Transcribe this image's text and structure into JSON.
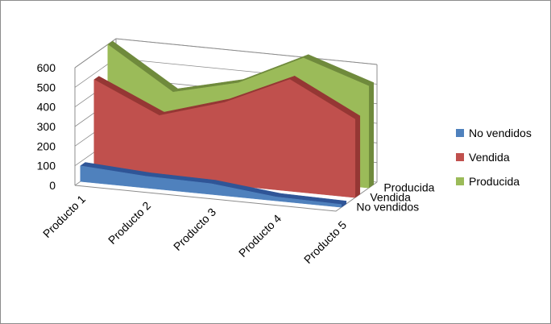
{
  "chart_data": {
    "type": "area",
    "title": "",
    "xlabel": "",
    "ylabel": "",
    "ylim": [
      0,
      600
    ],
    "yticks": [
      0,
      100,
      200,
      300,
      400,
      500,
      600
    ],
    "categories": [
      "Producto 1",
      "Producto 2",
      "Producto 3",
      "Producto 4",
      "Producto 5"
    ],
    "depth_labels": [
      "Producida",
      "Vendida",
      "No vendidos"
    ],
    "series": [
      {
        "name": "No vendidos",
        "values": [
          80,
          60,
          55,
          20,
          15
        ],
        "color": "#4f81bd",
        "side_color": "#2f5597"
      },
      {
        "name": "Vendida",
        "values": [
          470,
          320,
          420,
          570,
          400
        ],
        "color": "#c0504d",
        "side_color": "#953734"
      },
      {
        "name": "Producida",
        "values": [
          600,
          390,
          470,
          630,
          520
        ],
        "color": "#9bbb59",
        "side_color": "#6f8a3c"
      }
    ],
    "grid": true,
    "legend_position": "right"
  }
}
